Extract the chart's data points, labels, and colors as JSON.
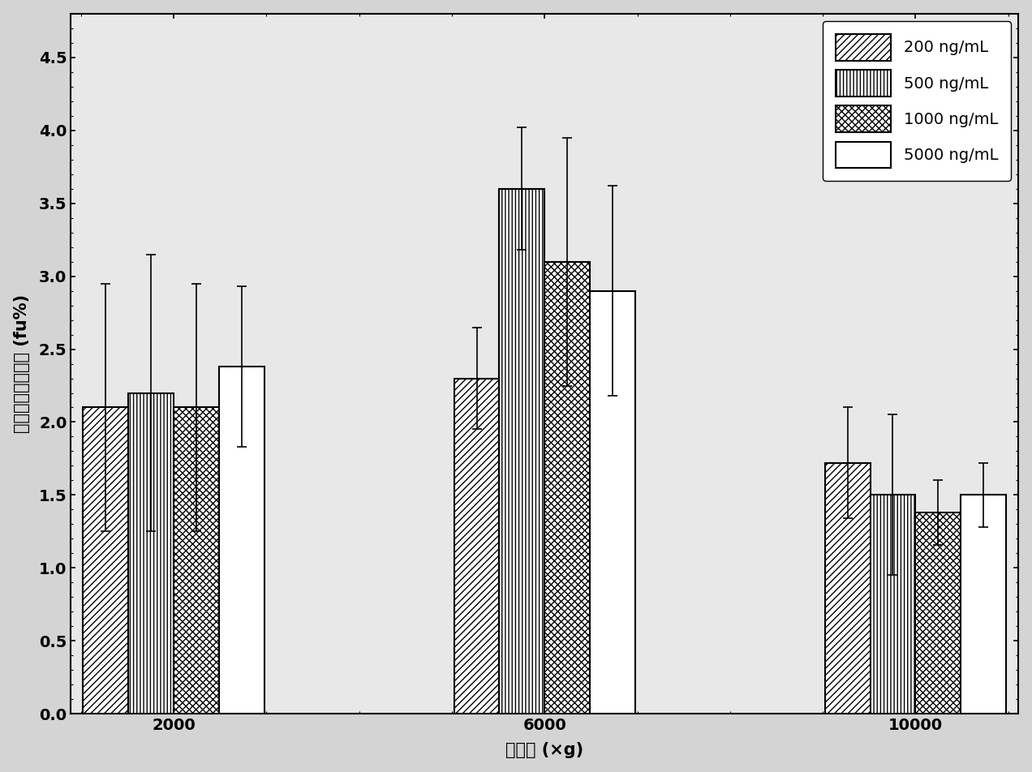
{
  "groups": [
    "2000",
    "6000",
    "10000"
  ],
  "series_labels": [
    "200 ng/mL",
    "500 ng/mL",
    "1000 ng/mL",
    "5000 ng/mL"
  ],
  "values": [
    [
      2.1,
      2.2,
      2.1,
      2.38
    ],
    [
      2.3,
      3.6,
      3.1,
      2.9
    ],
    [
      1.72,
      1.5,
      1.38,
      1.5
    ]
  ],
  "errors": [
    [
      0.85,
      0.95,
      0.85,
      0.55
    ],
    [
      0.35,
      0.42,
      0.85,
      0.72
    ],
    [
      0.38,
      0.55,
      0.22,
      0.22
    ]
  ],
  "xlabel": "离心力 (×g)",
  "ylabel": "多西他赛游离分数 (fu%)",
  "ylim": [
    0.0,
    4.8
  ],
  "yticks": [
    0.0,
    0.5,
    1.0,
    1.5,
    2.0,
    2.5,
    3.0,
    3.5,
    4.0,
    4.5
  ],
  "bar_width": 0.22,
  "hatch_patterns": [
    "////",
    "||||",
    "xxxx",
    ""
  ],
  "bar_facecolor": "white",
  "bar_edgecolor": "black",
  "legend_fontsize": 14,
  "axis_fontsize": 15,
  "tick_fontsize": 14,
  "bg_color": "#e8e8e8",
  "figure_bg": "#d4d4d4"
}
